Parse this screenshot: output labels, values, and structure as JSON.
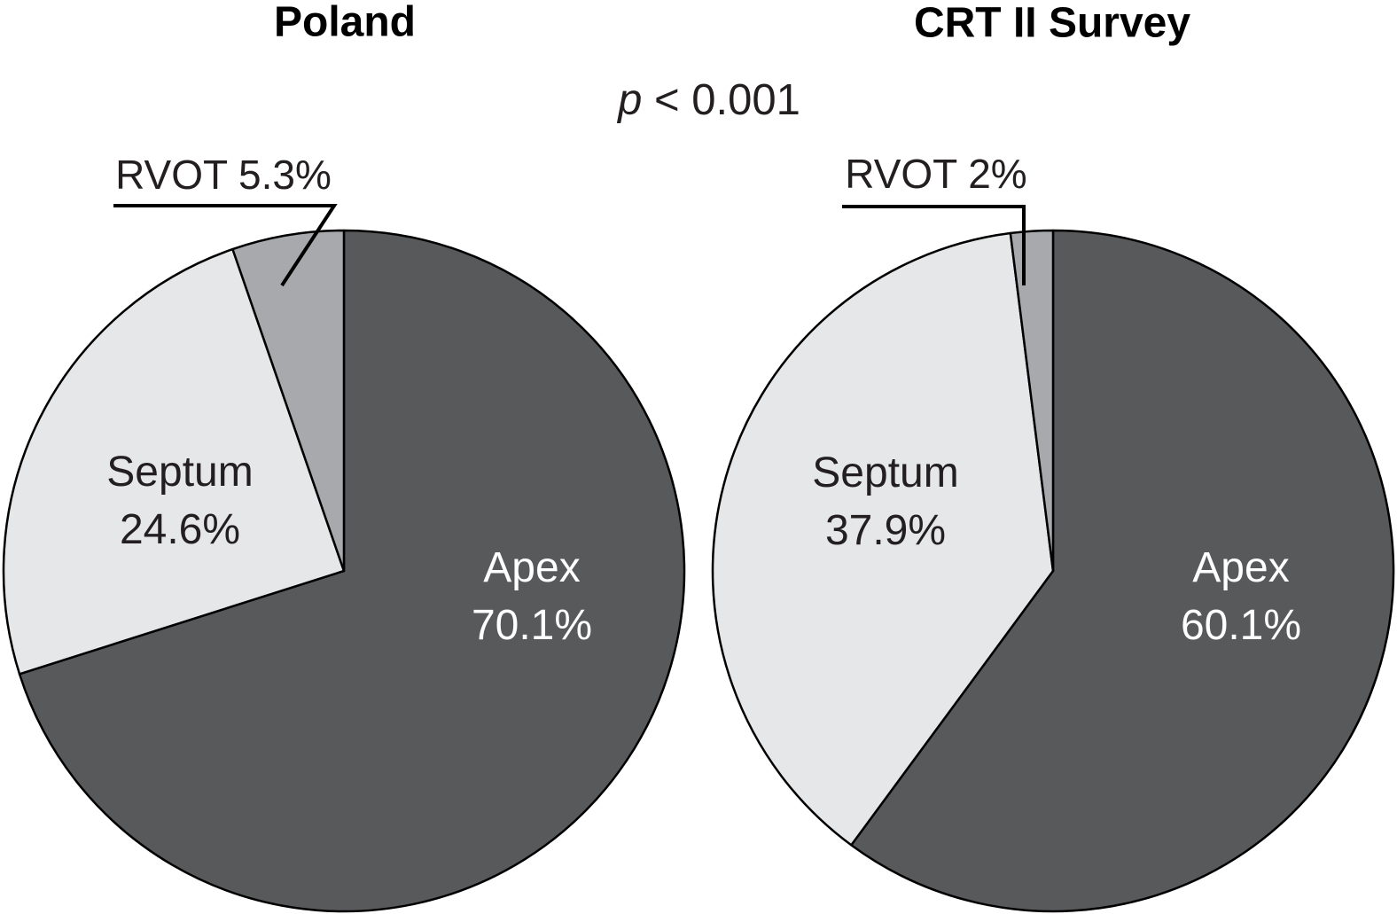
{
  "annotation": {
    "p_symbol": "p",
    "p_rest": " < 0.001",
    "full_text": "p < 0.001"
  },
  "styles": {
    "background": "#ffffff",
    "outline_color": "#000000",
    "leader_line_color": "#000000",
    "title_color": "#000000",
    "dark_slice_color": "#58595b",
    "light_slice_color": "#e6e7e8",
    "medium_slice_color": "#a7a9ac"
  },
  "chart_data": [
    {
      "type": "pie",
      "title": "Poland",
      "start_angle_deg": 0,
      "direction": "clockwise",
      "slices": [
        {
          "label": "Apex",
          "value": 70.1,
          "pct_text": "70.1%",
          "color": "#58595b",
          "label_color": "#ffffff",
          "label_inside": true
        },
        {
          "label": "Septum",
          "value": 24.6,
          "pct_text": "24.6%",
          "color": "#e6e7e8",
          "label_color": "#231f20",
          "label_inside": true
        },
        {
          "label": "RVOT",
          "value": 5.3,
          "pct_text": "5.3%",
          "color": "#a7a9ac",
          "label_color": "#231f20",
          "label_inside": false,
          "callout_text": "RVOT 5.3%"
        }
      ]
    },
    {
      "type": "pie",
      "title": "CRT II Survey",
      "start_angle_deg": 0,
      "direction": "clockwise",
      "slices": [
        {
          "label": "Apex",
          "value": 60.1,
          "pct_text": "60.1%",
          "color": "#58595b",
          "label_color": "#ffffff",
          "label_inside": true
        },
        {
          "label": "Septum",
          "value": 37.9,
          "pct_text": "37.9%",
          "color": "#e6e7e8",
          "label_color": "#231f20",
          "label_inside": true
        },
        {
          "label": "RVOT",
          "value": 2,
          "pct_text": "2%",
          "color": "#a7a9ac",
          "label_color": "#231f20",
          "label_inside": false,
          "callout_text": "RVOT 2%"
        }
      ]
    }
  ]
}
